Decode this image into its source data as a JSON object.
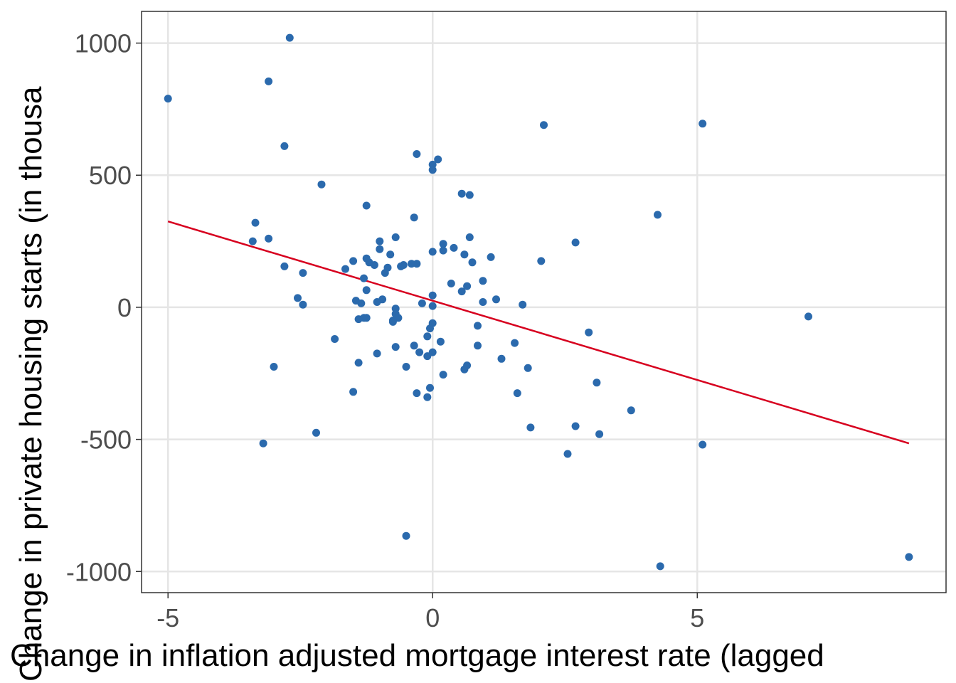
{
  "chart_data": {
    "type": "scatter",
    "title": "",
    "xlabel": "Change in inflation adjusted mortgage interest rate (lagged",
    "ylabel": "Change in private housing starts (in thousa",
    "xlim": [
      -5.5,
      9.7
    ],
    "ylim": [
      -1080,
      1120
    ],
    "x_ticks": [
      -5,
      0,
      5
    ],
    "x_tick_labels": [
      "-5",
      "0",
      "5"
    ],
    "y_ticks": [
      -1000,
      -500,
      0,
      500,
      1000
    ],
    "y_tick_labels": [
      "-1000",
      "-500",
      "0",
      "500",
      "1000"
    ],
    "grid": true,
    "legend": "none",
    "colors": {
      "points": "#2b6aad",
      "fit_line": "#d7001f",
      "grid": "#e5e5e5",
      "border": "#333333"
    },
    "series": [
      {
        "kind": "points",
        "x": [
          -5.0,
          -2.7,
          -3.1,
          -2.8,
          2.1,
          5.1,
          -0.3,
          0.1,
          -2.1,
          0.0,
          0.0,
          0.55,
          0.7,
          -0.35,
          -1.25,
          4.25,
          -3.35,
          -3.1,
          -3.4,
          -0.7,
          0.7,
          2.7,
          -1.0,
          0.2,
          0.4,
          -1.0,
          0.0,
          0.2,
          0.6,
          -0.8,
          1.1,
          -1.25,
          -1.5,
          2.05,
          -1.2,
          -1.1,
          -2.8,
          -0.4,
          -0.55,
          -0.85,
          -0.6,
          -1.65,
          -2.45,
          -1.3,
          0.75,
          0.95,
          -0.3,
          0.35,
          0.65,
          -0.9,
          -1.25,
          0.0,
          0.55,
          -2.55,
          -0.95,
          1.2,
          0.95,
          -1.45,
          -1.05,
          -1.35,
          -2.45,
          -0.2,
          0.0,
          1.7,
          -0.7,
          7.1,
          -1.25,
          -1.3,
          -0.7,
          -0.65,
          -1.4,
          -0.75,
          -0.75,
          0.0,
          0.85,
          -0.05,
          2.95,
          -0.1,
          -1.85,
          0.15,
          1.55,
          0.85,
          -0.35,
          -0.7,
          -0.25,
          0.0,
          -1.05,
          -0.1,
          1.3,
          0.65,
          -1.4,
          0.6,
          1.8,
          -3.0,
          -0.5,
          0.2,
          3.1,
          -0.05,
          -1.5,
          -0.3,
          1.6,
          -0.1,
          3.75,
          1.85,
          2.7,
          3.15,
          -2.2,
          -3.2,
          5.1,
          2.55,
          -0.5,
          9.0,
          4.3
        ],
        "y": [
          790,
          1020,
          855,
          610,
          690,
          695,
          580,
          560,
          465,
          540,
          520,
          430,
          425,
          340,
          385,
          350,
          320,
          260,
          250,
          265,
          265,
          245,
          250,
          240,
          225,
          220,
          210,
          215,
          200,
          200,
          190,
          185,
          175,
          175,
          170,
          160,
          155,
          165,
          160,
          150,
          155,
          145,
          130,
          110,
          170,
          100,
          165,
          90,
          80,
          130,
          65,
          45,
          60,
          35,
          30,
          30,
          20,
          25,
          20,
          15,
          10,
          15,
          5,
          10,
          -5,
          -35,
          -40,
          -40,
          -25,
          -40,
          -45,
          -50,
          -55,
          -60,
          -70,
          -80,
          -95,
          -110,
          -120,
          -130,
          -135,
          -145,
          -145,
          -150,
          -170,
          -170,
          -175,
          -185,
          -195,
          -220,
          -210,
          -235,
          -230,
          -225,
          -225,
          -255,
          -285,
          -305,
          -320,
          -325,
          -325,
          -340,
          -390,
          -455,
          -450,
          -480,
          -475,
          -515,
          -520,
          -555,
          -865,
          -945,
          -980
        ]
      },
      {
        "kind": "fit_line",
        "x": [
          -5.0,
          9.0
        ],
        "y": [
          325,
          -515
        ]
      }
    ]
  }
}
